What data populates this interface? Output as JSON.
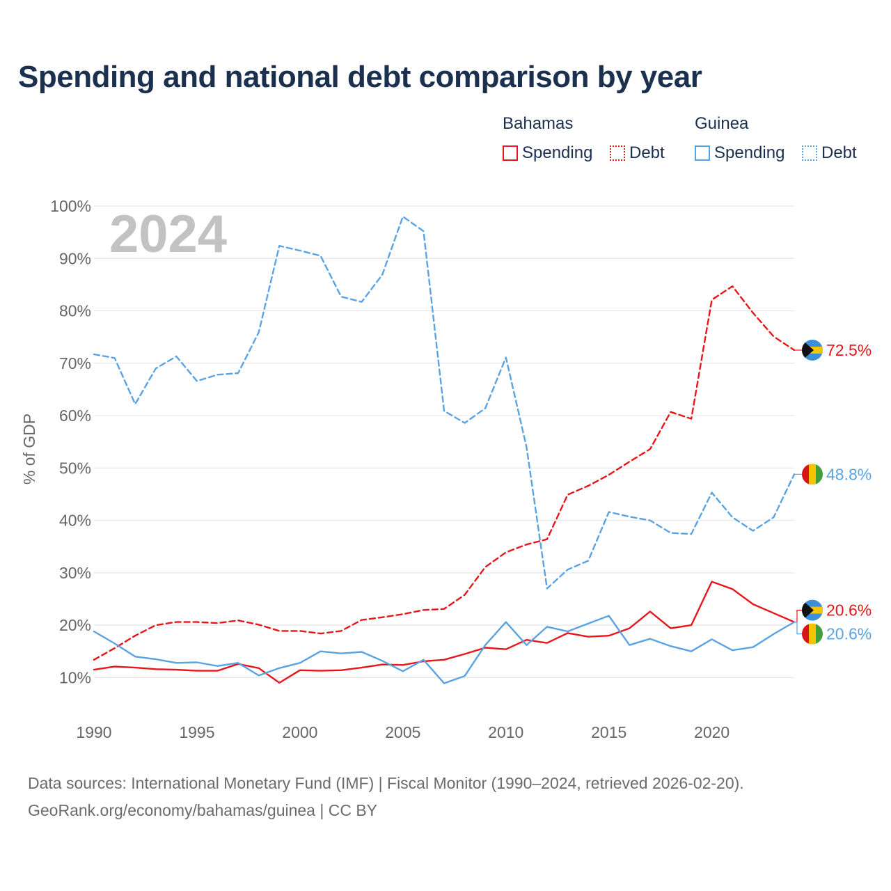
{
  "title": "Spending and national debt comparison by year",
  "legend": {
    "groups": [
      {
        "country": "Bahamas",
        "color": "#e8151a",
        "items": [
          {
            "label": "Spending",
            "style": "solid"
          },
          {
            "label": "Debt",
            "style": "dotted"
          }
        ]
      },
      {
        "country": "Guinea",
        "color": "#5aa3e2",
        "items": [
          {
            "label": "Spending",
            "style": "solid"
          },
          {
            "label": "Debt",
            "style": "dotted"
          }
        ]
      }
    ]
  },
  "chart_data": {
    "type": "line",
    "title": "Spending and national debt comparison by year",
    "xlabel": "",
    "ylabel": "% of GDP",
    "year_watermark": "2024",
    "xlim": [
      1990,
      2024
    ],
    "ylim": [
      5,
      100
    ],
    "xticks": [
      1990,
      1995,
      2000,
      2005,
      2010,
      2015,
      2020
    ],
    "yticks": [
      10,
      20,
      30,
      40,
      50,
      60,
      70,
      80,
      90,
      100
    ],
    "ytick_labels": [
      "10%",
      "20%",
      "30%",
      "40%",
      "50%",
      "60%",
      "70%",
      "80%",
      "90%",
      "100%"
    ],
    "grid": true,
    "x": [
      1990,
      1991,
      1992,
      1993,
      1994,
      1995,
      1996,
      1997,
      1998,
      1999,
      2000,
      2001,
      2002,
      2003,
      2004,
      2005,
      2006,
      2007,
      2008,
      2009,
      2010,
      2011,
      2012,
      2013,
      2014,
      2015,
      2016,
      2017,
      2018,
      2019,
      2020,
      2021,
      2022,
      2023,
      2024
    ],
    "series": [
      {
        "name": "Bahamas Spending",
        "country": "Bahamas",
        "metric": "Spending",
        "color": "#e8151a",
        "dash": "solid",
        "values": [
          11.5,
          12.1,
          11.9,
          11.6,
          11.5,
          11.3,
          11.3,
          12.6,
          11.8,
          9.0,
          11.4,
          11.3,
          11.4,
          11.9,
          12.5,
          12.4,
          13.1,
          13.4,
          14.5,
          15.7,
          15.4,
          17.2,
          16.6,
          18.5,
          17.8,
          18.0,
          19.4,
          22.6,
          19.4,
          20.0,
          28.3,
          26.9,
          24.0,
          22.3,
          20.6
        ],
        "end_label": "20.6%"
      },
      {
        "name": "Bahamas Debt",
        "country": "Bahamas",
        "metric": "Debt",
        "color": "#e8151a",
        "dash": "dashed",
        "values": [
          13.4,
          15.6,
          18.0,
          20.0,
          20.6,
          20.6,
          20.4,
          20.9,
          20.1,
          18.9,
          18.9,
          18.4,
          18.9,
          21.0,
          21.5,
          22.1,
          22.9,
          23.1,
          25.8,
          31.1,
          33.9,
          35.4,
          36.4,
          44.9,
          46.6,
          48.7,
          51.2,
          53.6,
          60.7,
          59.4,
          82.1,
          84.7,
          79.6,
          75.1,
          72.5
        ],
        "end_label": "72.5%"
      },
      {
        "name": "Guinea Spending",
        "country": "Guinea",
        "metric": "Spending",
        "color": "#5aa3e2",
        "dash": "solid",
        "values": [
          18.8,
          16.5,
          14.0,
          13.5,
          12.8,
          12.9,
          12.2,
          12.8,
          10.4,
          11.8,
          12.8,
          15.0,
          14.6,
          14.9,
          13.2,
          11.2,
          13.4,
          8.9,
          10.3,
          16.2,
          20.6,
          16.2,
          19.7,
          18.8,
          20.3,
          21.8,
          16.2,
          17.4,
          16.0,
          15.0,
          17.3,
          15.2,
          15.8,
          18.3,
          20.6
        ],
        "end_label": "20.6%"
      },
      {
        "name": "Guinea Debt",
        "country": "Guinea",
        "metric": "Debt",
        "color": "#5aa3e2",
        "dash": "dashed",
        "values": [
          71.7,
          71.0,
          62.2,
          69.0,
          71.3,
          66.6,
          67.8,
          68.1,
          75.9,
          92.4,
          91.5,
          90.5,
          82.7,
          81.7,
          86.9,
          98.0,
          95.2,
          60.9,
          58.6,
          61.4,
          71.1,
          54.0,
          27.0,
          30.6,
          32.3,
          41.6,
          40.7,
          40.0,
          37.6,
          37.4,
          45.3,
          40.6,
          38.0,
          40.6,
          48.8
        ],
        "end_label": "48.8%"
      }
    ]
  },
  "source": {
    "line1": "Data sources: International Monetary Fund (IMF) | Fiscal Monitor (1990–2024, retrieved 2026-02-20).",
    "line2": "GeoRank.org/economy/bahamas/guinea | CC BY"
  }
}
